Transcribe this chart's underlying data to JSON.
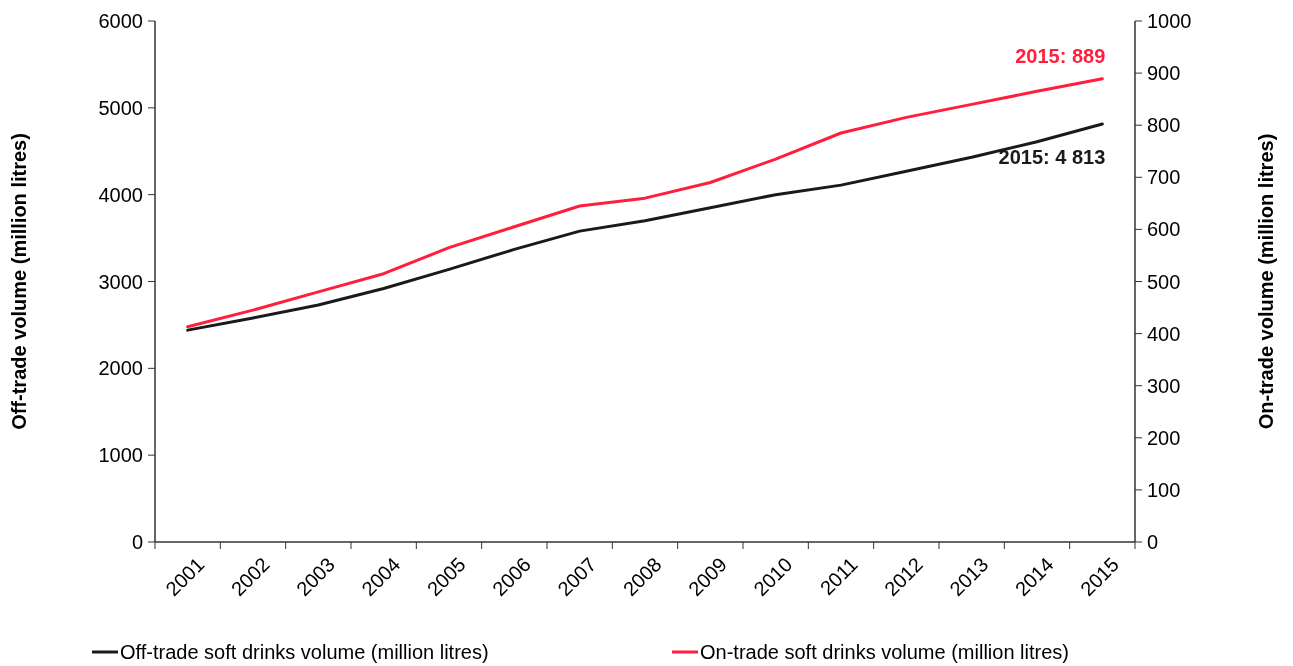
{
  "chart_data": {
    "type": "line",
    "ylabel": "Off-trade volume (million litres)",
    "y2label": "On-trade volume (million litres)",
    "categories": [
      "2001",
      "2002",
      "2003",
      "2004",
      "2005",
      "2006",
      "2007",
      "2008",
      "2009",
      "2010",
      "2011",
      "2012",
      "2013",
      "2014",
      "2015"
    ],
    "series": [
      {
        "name": "Off-trade soft drinks volume (million litres)",
        "color": "#1a1a1a",
        "values": [
          2440,
          2580,
          2730,
          2920,
          3140,
          3370,
          3580,
          3700,
          3850,
          4000,
          4110,
          4270,
          4430,
          4610,
          4813
        ]
      },
      {
        "name": "On-trade soft drinks volume (million litres)",
        "color": "#ff1f3d",
        "axis": "y2",
        "values": [
          413,
          445,
          480,
          515,
          565,
          605,
          645,
          660,
          690,
          735,
          785,
          815,
          840,
          865,
          889
        ]
      }
    ],
    "ylim": [
      0,
      6000
    ],
    "yticks": [
      0,
      1000,
      2000,
      3000,
      4000,
      5000,
      6000
    ],
    "y2lim": [
      0,
      1000
    ],
    "y2ticks": [
      0,
      100,
      200,
      300,
      400,
      500,
      600,
      700,
      800,
      900,
      1000
    ],
    "annotations": [
      "2015: 4 813",
      "2015: 889"
    ],
    "legend": "bottom",
    "grid": false,
    "line_style": "solid",
    "marker": "none"
  }
}
